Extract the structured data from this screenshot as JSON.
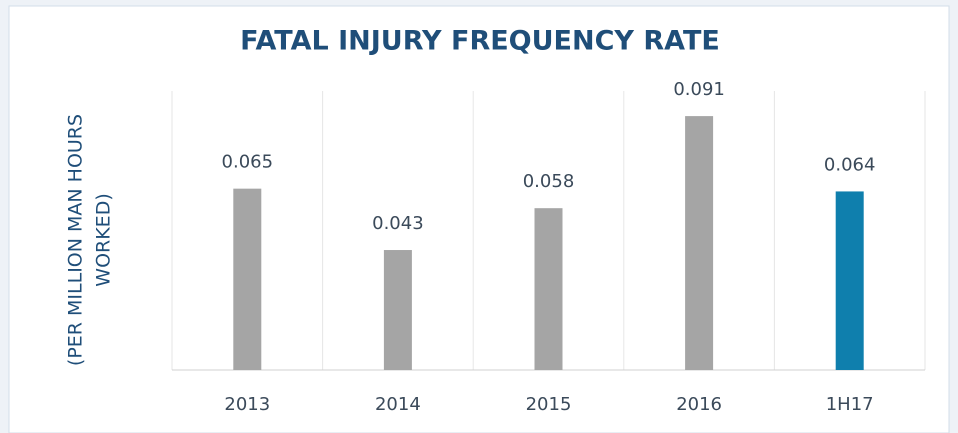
{
  "chart_data": {
    "type": "bar",
    "title": "FATAL INJURY FREQUENCY RATE",
    "y_label": [
      "(PER MILLION MAN HOURS",
      "WORKED)"
    ],
    "categories": [
      "2013",
      "2014",
      "2015",
      "2016",
      "1H17"
    ],
    "values": [
      0.065,
      0.043,
      0.058,
      0.091,
      0.064
    ],
    "colors": [
      "#a5a5a5",
      "#a5a5a5",
      "#a5a5a5",
      "#a5a5a5",
      "#0f7fad"
    ],
    "ylim": [
      0,
      0.1
    ]
  }
}
